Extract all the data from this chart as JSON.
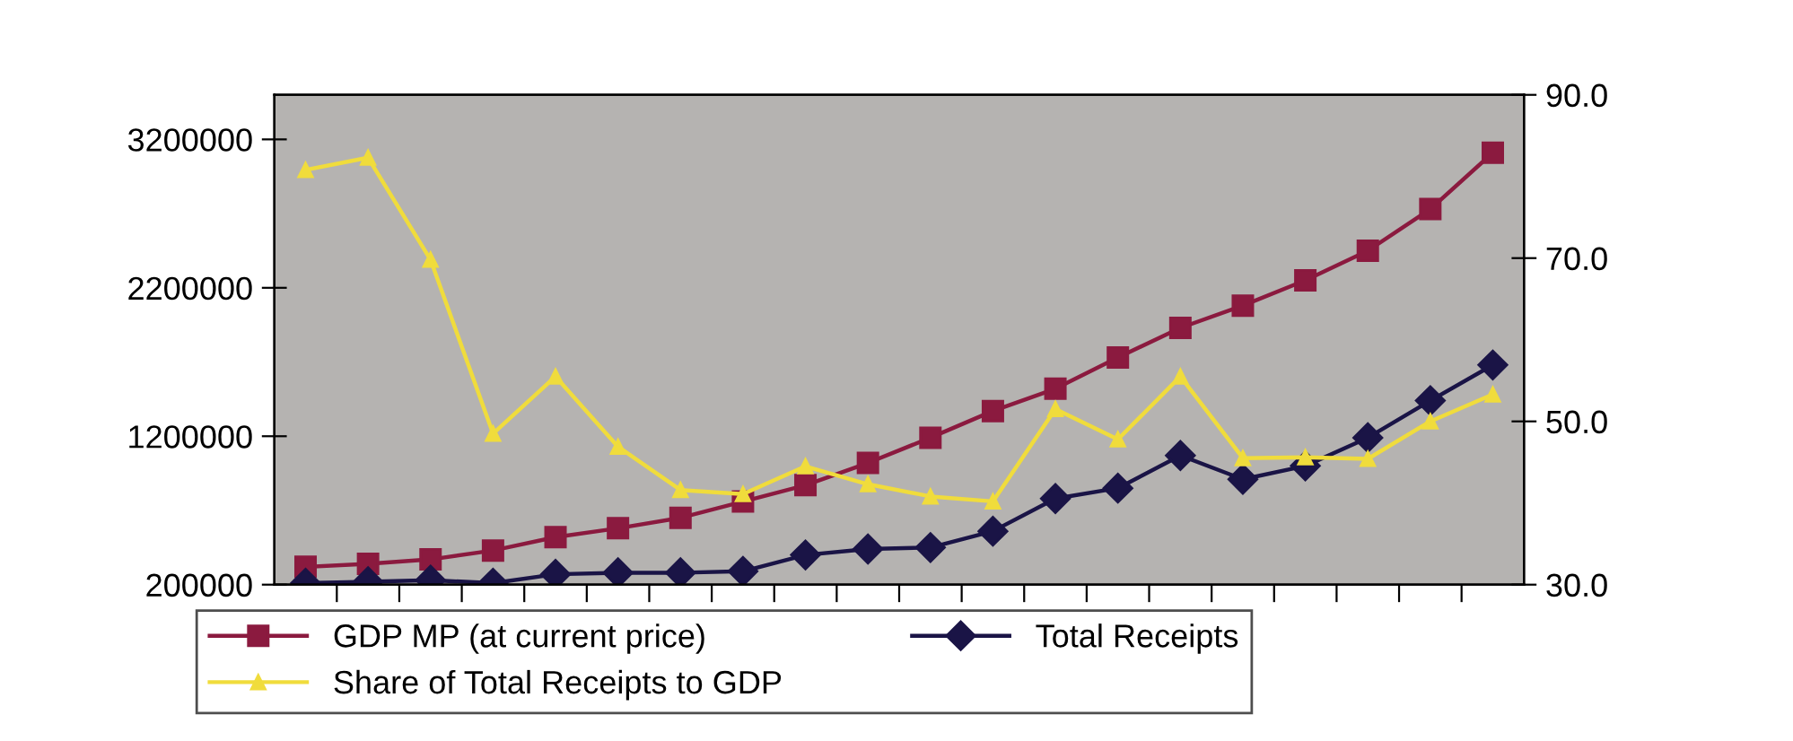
{
  "chart_data": {
    "type": "line",
    "categories": [
      null,
      null,
      null,
      null,
      null,
      null,
      null,
      null,
      null,
      null,
      null,
      null,
      null,
      null,
      null,
      null,
      null,
      null,
      null,
      null
    ],
    "series": [
      {
        "name": "GDP MP (at current price)",
        "color": "#8b1a3f",
        "marker": "square",
        "values": [
          320000,
          340000,
          370000,
          430000,
          520000,
          580000,
          650000,
          760000,
          870000,
          1020000,
          1190000,
          1370000,
          1520000,
          1730000,
          1930000,
          2080000,
          2250000,
          2450000,
          2730000,
          3110000
        ]
      },
      {
        "name": "Share of Total Receipts to GDP",
        "color": "#f0dc3c",
        "marker": "triangle",
        "axis": "y2",
        "values": [
          80.8,
          82.3,
          69.8,
          48.5,
          55.5,
          46.9,
          41.6,
          41.1,
          44.5,
          42.3,
          40.8,
          40.2,
          51.5,
          47.8,
          55.5,
          45.5,
          45.6,
          45.4,
          50.0,
          53.3
        ]
      },
      {
        "name": "Total Receipts",
        "color": "#1a1446",
        "marker": "diamond",
        "values": [
          210000,
          220000,
          230000,
          210000,
          270000,
          280000,
          280000,
          290000,
          400000,
          440000,
          450000,
          560000,
          780000,
          850000,
          1070000,
          910000,
          1000000,
          1190000,
          1440000,
          1680000
        ]
      }
    ],
    "ylim": [
      200000,
      3500000
    ],
    "yticks": [
      200000,
      1200000,
      2200000,
      3200000
    ],
    "y2lim": [
      30,
      90
    ],
    "y2ticks": [
      {
        "value": 30,
        "label": "30.0"
      },
      {
        "value": 50,
        "label": "50.0"
      },
      {
        "value": 70,
        "label": "70.0"
      },
      {
        "value": 90,
        "label": "90.0"
      }
    ],
    "legend": "bottom",
    "line_style": "solid"
  }
}
